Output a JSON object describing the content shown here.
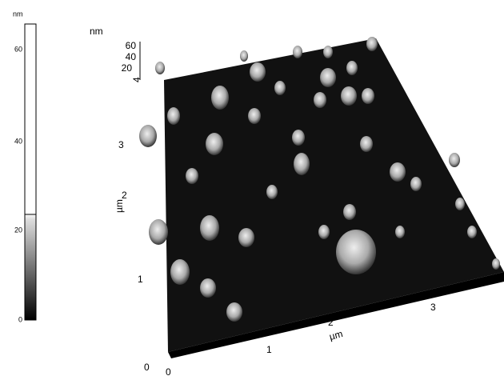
{
  "colorbar": {
    "unit": "nm",
    "ticks": [
      60,
      40,
      20,
      0
    ]
  },
  "z_axis": {
    "unit": "nm",
    "ticks": [
      60,
      40,
      20
    ]
  },
  "y_axis": {
    "unit": "µm",
    "ticks": [
      0,
      1,
      2,
      3,
      4
    ]
  },
  "x_axis": {
    "unit": "µm",
    "ticks": [
      0,
      1,
      2,
      3
    ]
  }
}
